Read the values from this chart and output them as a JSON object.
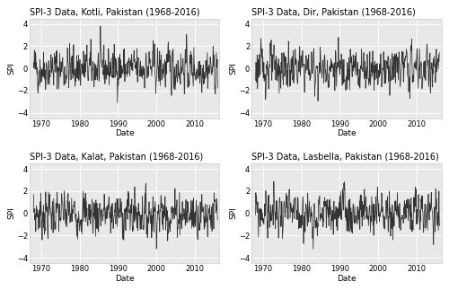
{
  "titles": [
    "SPI-3 Data, Kotli, Pakistan (1968-2016)",
    "SPI-3 Data, Dir, Pakistan (1968-2016)",
    "SPI-3 Data, Kalat, Pakistan (1968-2016)",
    "SPI-3 Data, Lasbella, Pakistan (1968-2016)"
  ],
  "xlabel": "Date",
  "ylabel": "SPI",
  "ylim": [
    -4.5,
    4.5
  ],
  "yticks": [
    -4,
    -2,
    0,
    2,
    4
  ],
  "xticks": [
    1970,
    1980,
    1990,
    2000,
    2010
  ],
  "xlim": [
    1967.0,
    2016.5
  ],
  "fig_bg_color": "#FFFFFF",
  "panel_bg_color": "#E8E8E8",
  "grid_color": "#FFFFFF",
  "line_color": "#333333",
  "border_color": "#CCCCCC",
  "title_fontsize": 7.0,
  "label_fontsize": 6.5,
  "tick_fontsize": 6.0,
  "line_width": 0.55,
  "n_points": 576,
  "seeds": [
    42,
    123,
    7,
    99
  ]
}
